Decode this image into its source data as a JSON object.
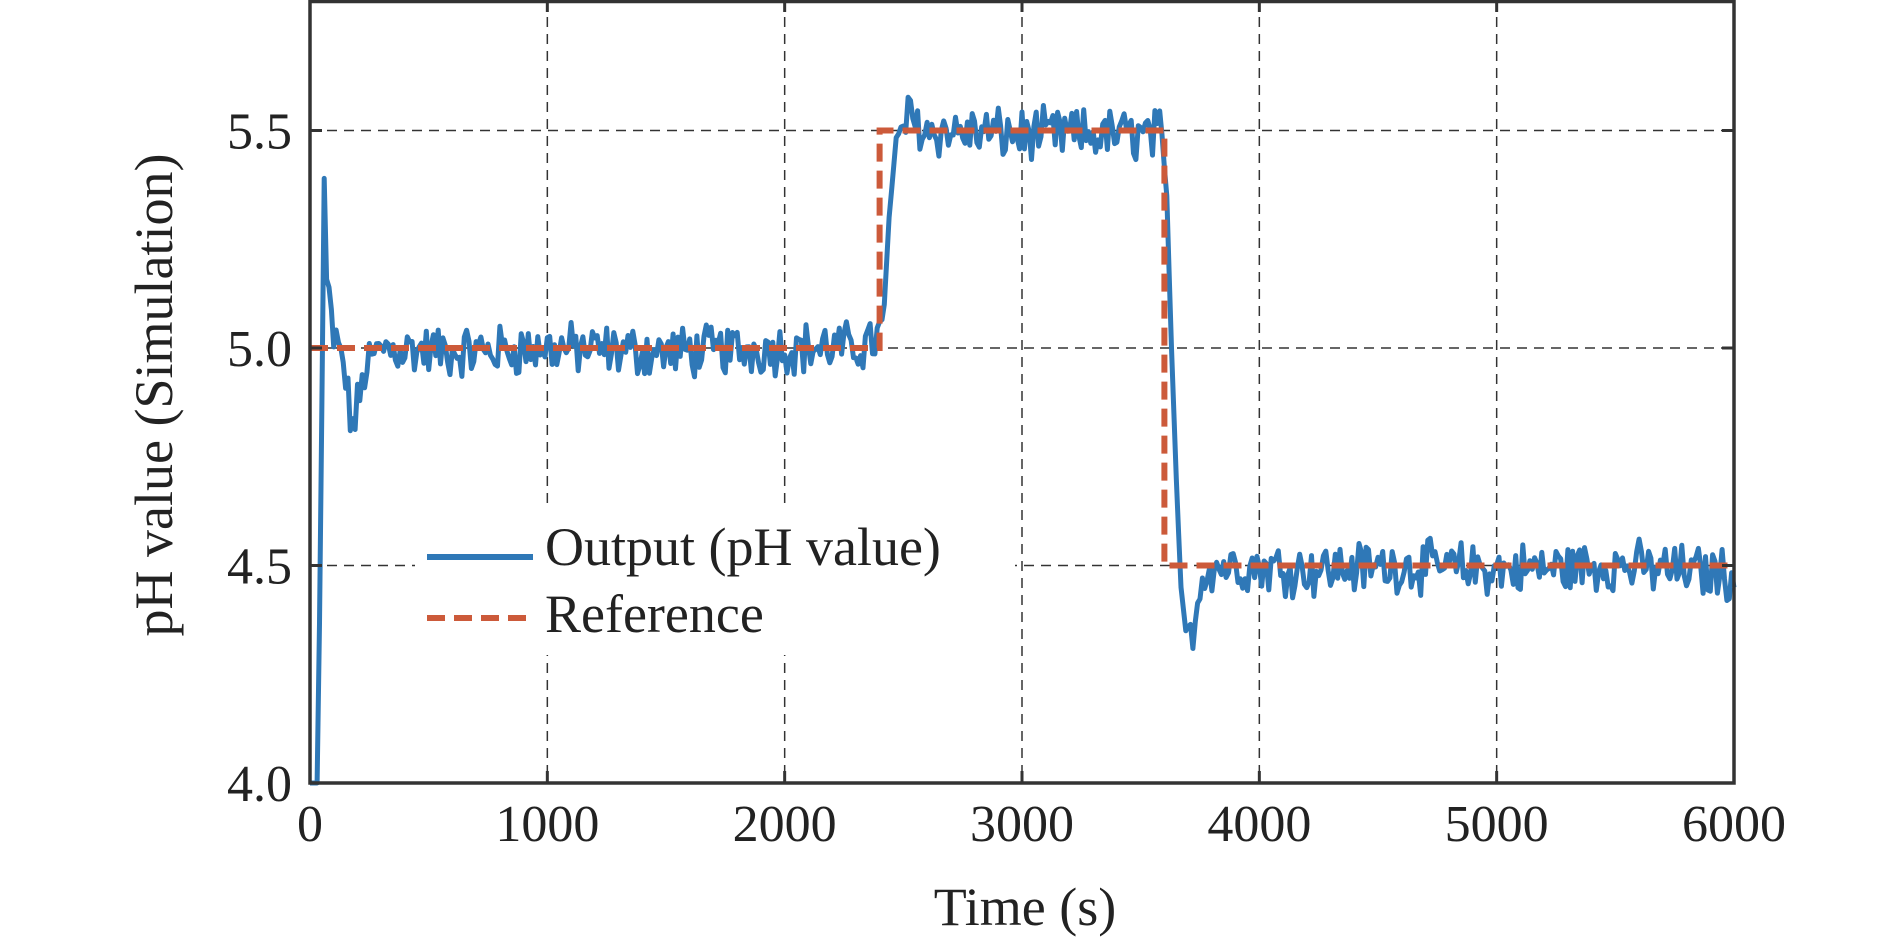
{
  "chart_data": {
    "type": "line",
    "title": "",
    "xlabel": "Time (s)",
    "ylabel": "pH value (Simulation)",
    "xlim": [
      0,
      6000
    ],
    "ylim": [
      4.0,
      5.8
    ],
    "xticks": [
      0,
      1000,
      2000,
      3000,
      4000,
      5000,
      6000
    ],
    "xtick_labels": [
      "0",
      "1000",
      "2000",
      "3000",
      "4000",
      "5000",
      "6000"
    ],
    "yticks": [
      4.0,
      4.5,
      5.0,
      5.5
    ],
    "ytick_labels": [
      "4.0",
      "4.5",
      "5.0",
      "5.5"
    ],
    "grid": true,
    "legend_position": "lower-left",
    "series": [
      {
        "name": "Output (pH value)",
        "color": "#2f78b7",
        "style": "solid",
        "noise_amplitude": 0.05,
        "x": [
          0,
          30,
          45,
          55,
          60,
          70,
          100,
          140,
          160,
          180,
          200,
          230,
          300,
          600,
          1000,
          1500,
          2000,
          2300,
          2380,
          2400,
          2420,
          2440,
          2460,
          2490,
          2520,
          2600,
          3000,
          3400,
          3580,
          3610,
          3630,
          3650,
          3670,
          3690,
          3700,
          3720,
          3740,
          3760,
          3800,
          3900,
          4200,
          4600,
          5000,
          5500,
          6000
        ],
        "y": [
          4.0,
          4.0,
          4.55,
          5.2,
          5.39,
          5.15,
          5.02,
          4.97,
          4.88,
          4.82,
          4.86,
          4.95,
          5.0,
          4.99,
          5.0,
          4.99,
          5.0,
          5.0,
          5.02,
          5.03,
          5.1,
          5.3,
          5.42,
          5.5,
          5.53,
          5.5,
          5.49,
          5.49,
          5.49,
          5.35,
          5.0,
          4.7,
          4.45,
          4.35,
          4.33,
          4.36,
          4.42,
          4.48,
          4.5,
          4.5,
          4.49,
          4.5,
          4.49,
          4.5,
          4.48
        ]
      },
      {
        "name": "Reference",
        "color": "#cc5a3a",
        "style": "dashed",
        "x": [
          0,
          2400,
          2400,
          3600,
          3600,
          6000
        ],
        "y": [
          5.0,
          5.0,
          5.5,
          5.5,
          4.5,
          4.5
        ]
      }
    ]
  }
}
